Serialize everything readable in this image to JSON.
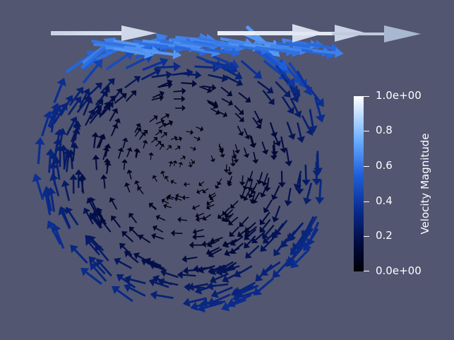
{
  "scene": {
    "background": "#525671",
    "vortex": {
      "center_fraction": [
        0.265,
        0.23
      ],
      "description_type": "glyph-vector-field"
    },
    "colormap": [
      "#000005",
      "#020a3c",
      "#0a2c8e",
      "#1f5fd9",
      "#6aaeff",
      "#ffffff"
    ]
  },
  "colorbar": {
    "title": "Velocity Magnitude",
    "range": [
      0.0,
      1.0
    ],
    "ticks": [
      {
        "label": "1.0e+00",
        "value": 1.0
      },
      {
        "label": "0.8",
        "value": 0.8
      },
      {
        "label": "0.6",
        "value": 0.6
      },
      {
        "label": "0.4",
        "value": 0.4
      },
      {
        "label": "0.2",
        "value": 0.2
      },
      {
        "label": "0.0e+00",
        "value": 0.0
      }
    ]
  }
}
